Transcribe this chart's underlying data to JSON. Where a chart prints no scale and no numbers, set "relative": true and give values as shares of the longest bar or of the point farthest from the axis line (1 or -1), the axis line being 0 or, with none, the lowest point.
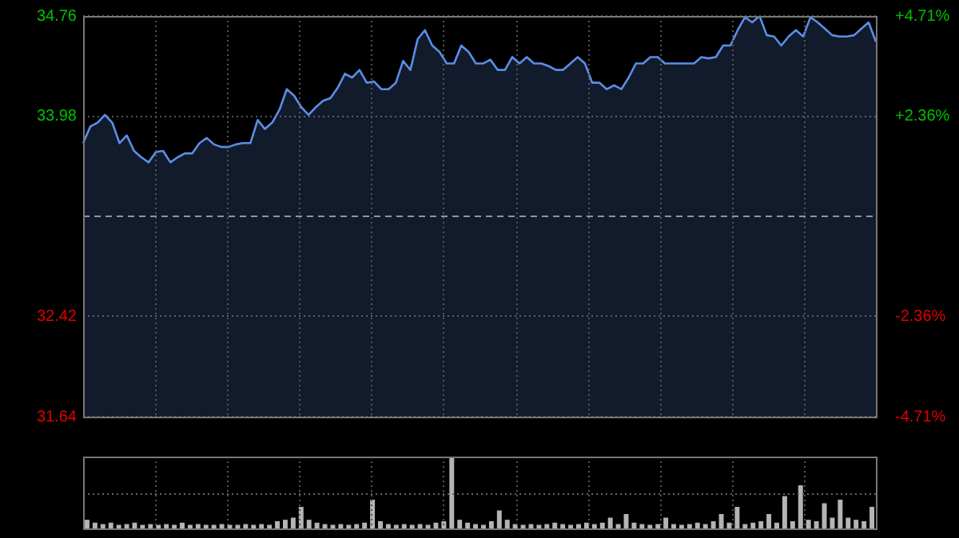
{
  "chart_data": [
    {
      "type": "area",
      "categories": [
        null,
        null,
        null,
        null,
        null,
        null,
        null,
        null,
        null,
        null,
        null,
        null,
        null,
        null,
        null,
        null,
        null,
        null,
        null,
        null,
        null,
        null,
        null,
        null,
        null,
        null,
        null,
        null,
        null,
        null,
        null,
        null,
        null,
        null,
        null,
        null,
        null,
        null,
        null,
        null,
        null,
        null,
        null,
        null,
        null,
        null,
        null,
        null,
        null,
        null,
        null,
        null,
        null,
        null,
        null,
        null,
        null,
        null,
        null,
        null,
        null,
        null,
        null,
        null,
        null,
        null,
        null,
        null,
        null,
        null,
        null,
        null,
        null,
        null,
        null,
        null,
        null,
        null,
        null,
        null,
        null,
        null,
        null,
        null,
        null,
        null,
        null,
        null,
        null,
        null,
        null,
        null,
        null,
        null,
        null,
        null,
        null,
        null,
        null,
        null,
        null,
        null,
        null,
        null,
        null,
        null,
        null,
        null,
        null,
        null
      ],
      "color": "#5b8ee6",
      "values": [
        33.77,
        33.9,
        33.93,
        33.99,
        33.93,
        33.77,
        33.83,
        33.71,
        33.66,
        33.62,
        33.7,
        33.71,
        33.62,
        33.66,
        33.69,
        33.69,
        33.77,
        33.81,
        33.76,
        33.74,
        33.74,
        33.76,
        33.77,
        33.77,
        33.95,
        33.88,
        33.93,
        34.03,
        34.19,
        34.14,
        34.05,
        33.99,
        34.05,
        34.1,
        34.12,
        34.2,
        34.31,
        34.28,
        34.34,
        34.24,
        34.25,
        34.19,
        34.19,
        34.24,
        34.41,
        34.34,
        34.58,
        34.65,
        34.53,
        34.48,
        34.39,
        34.39,
        34.53,
        34.48,
        34.39,
        34.39,
        34.42,
        34.34,
        34.34,
        34.44,
        34.39,
        34.44,
        34.39,
        34.39,
        34.37,
        34.34,
        34.34,
        34.39,
        34.44,
        34.39,
        34.24,
        34.24,
        34.19,
        34.22,
        34.19,
        34.28,
        34.39,
        34.39,
        34.44,
        34.44,
        34.39,
        34.39,
        34.39,
        34.39,
        34.39,
        34.44,
        34.43,
        34.44,
        34.53,
        34.53,
        34.65,
        34.75,
        34.71,
        34.76,
        34.61,
        34.6,
        34.53,
        34.6,
        34.65,
        34.6,
        34.75,
        34.71,
        34.66,
        34.61,
        34.6,
        34.6,
        34.61,
        34.66,
        34.71,
        34.56
      ],
      "ylim": [
        31.64,
        34.76
      ],
      "yticks": [
        31.64,
        32.42,
        33.98,
        34.76
      ],
      "y2lim": [
        -4.71,
        4.71
      ],
      "y2ticks": [
        {
          "value": -4.71,
          "label": "-4.71%"
        },
        {
          "value": -2.36,
          "label": "-2.36%"
        },
        {
          "value": 2.36,
          "label": "+2.36%"
        },
        {
          "value": 4.71,
          "label": "+4.71%"
        }
      ],
      "ref_lines": [
        {
          "axis": "y",
          "value": 33.2,
          "line_style": "dashed",
          "color": "#8a97a8"
        }
      ],
      "grid": true,
      "tick_labels": "y"
    },
    {
      "type": "bar",
      "relative": true,
      "color": "#b4b4b4",
      "grid": "x",
      "ref_lines": [
        {
          "axis": "y",
          "value": 0.48,
          "line_style": "dotted",
          "color": "#666666"
        }
      ],
      "categories": [
        null,
        null,
        null,
        null,
        null,
        null,
        null,
        null,
        null,
        null,
        null,
        null,
        null,
        null,
        null,
        null,
        null,
        null,
        null,
        null,
        null,
        null,
        null,
        null,
        null,
        null,
        null,
        null,
        null,
        null,
        null,
        null,
        null,
        null,
        null,
        null,
        null,
        null,
        null,
        null,
        null,
        null,
        null,
        null,
        null,
        null,
        null,
        null,
        null,
        null,
        null,
        null,
        null,
        null,
        null,
        null,
        null,
        null,
        null,
        null,
        null,
        null,
        null,
        null,
        null,
        null,
        null,
        null,
        null,
        null,
        null,
        null,
        null,
        null,
        null,
        null,
        null,
        null,
        null,
        null,
        null,
        null,
        null,
        null,
        null,
        null,
        null,
        null,
        null,
        null,
        null,
        null,
        null,
        null,
        null,
        null,
        null,
        null,
        null,
        null
      ],
      "values": [
        0.12,
        0.08,
        0.06,
        0.08,
        0.05,
        0.06,
        0.08,
        0.05,
        0.06,
        0.05,
        0.06,
        0.05,
        0.08,
        0.05,
        0.06,
        0.05,
        0.05,
        0.06,
        0.05,
        0.05,
        0.06,
        0.05,
        0.06,
        0.05,
        0.1,
        0.12,
        0.15,
        0.3,
        0.12,
        0.08,
        0.06,
        0.05,
        0.06,
        0.05,
        0.06,
        0.08,
        0.4,
        0.1,
        0.06,
        0.05,
        0.06,
        0.05,
        0.06,
        0.05,
        0.08,
        0.1,
        1,
        0.12,
        0.08,
        0.06,
        0.05,
        0.1,
        0.25,
        0.12,
        0.06,
        0.05,
        0.06,
        0.05,
        0.06,
        0.08,
        0.06,
        0.05,
        0.06,
        0.08,
        0.06,
        0.08,
        0.15,
        0.06,
        0.2,
        0.08,
        0.06,
        0.05,
        0.06,
        0.15,
        0.06,
        0.05,
        0.06,
        0.08,
        0.06,
        0.1,
        0.2,
        0.08,
        0.3,
        0.06,
        0.08,
        0.1,
        0.2,
        0.08,
        0.45,
        0.1,
        0.6,
        0.12,
        0.1,
        0.35,
        0.15,
        0.4,
        0.15,
        0.12,
        0.1,
        0.3
      ]
    }
  ]
}
